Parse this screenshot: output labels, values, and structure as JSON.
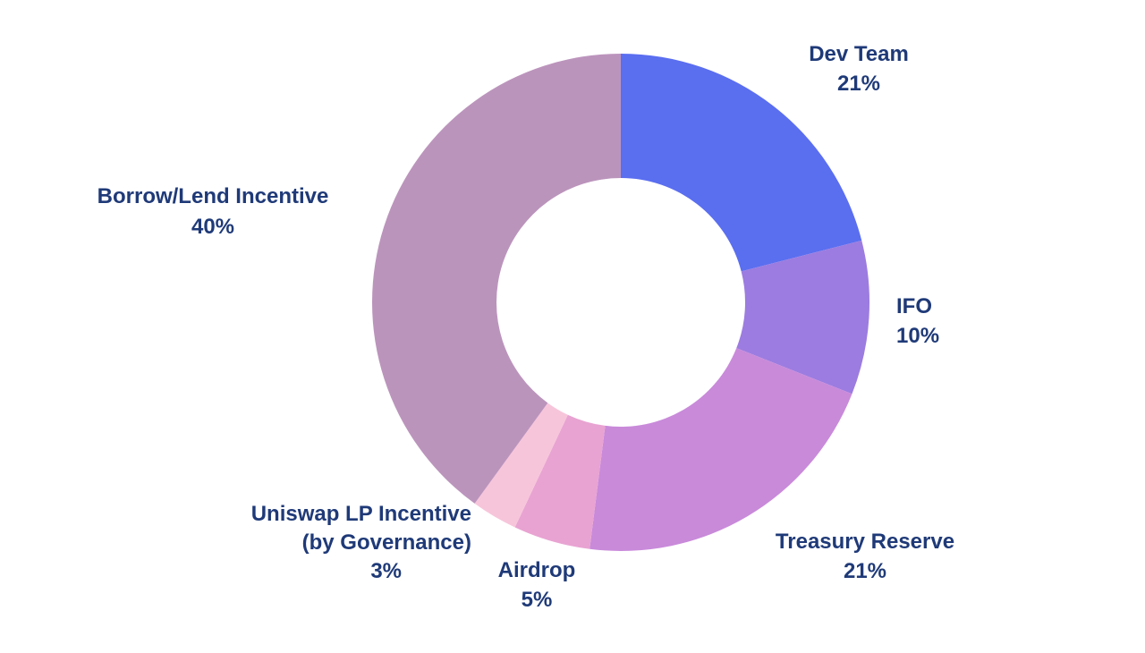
{
  "page": {
    "background_color": "#ffffff"
  },
  "chart_data": {
    "type": "pie",
    "subtype": "donut",
    "title": "",
    "units": "%",
    "start_angle_deg": 0,
    "direction": "clockwise",
    "inner_radius_ratio": 0.5,
    "label_text_color": "#1f3a78",
    "legend": "none (direct slice labels)",
    "categories": [
      "Dev Team",
      "IFO",
      "Treasury Reserve",
      "Airdrop",
      "Uniswap LP Incentive (by Governance)",
      "Borrow/Lend Incentive"
    ],
    "values": [
      21,
      10,
      21,
      5,
      3,
      40
    ],
    "segments": [
      {
        "label": "Dev Team",
        "value": 21,
        "pct_label": "21%",
        "color": "#5a6ef0"
      },
      {
        "label": "IFO",
        "value": 10,
        "pct_label": "10%",
        "color": "#9c7ce0"
      },
      {
        "label": "Treasury Reserve",
        "value": 21,
        "pct_label": "21%",
        "color": "#c98ada"
      },
      {
        "label": "Airdrop",
        "value": 5,
        "pct_label": "5%",
        "color": "#e8a3d2"
      },
      {
        "label": "Uniswap LP Incentive (by Governance)",
        "label_lines": [
          "Uniswap LP Incentive",
          "(by Governance)"
        ],
        "value": 3,
        "pct_label": "3%",
        "color": "#f7c5da"
      },
      {
        "label": "Borrow/Lend Incentive",
        "value": 40,
        "pct_label": "40%",
        "color": "#bb94bc"
      }
    ]
  }
}
